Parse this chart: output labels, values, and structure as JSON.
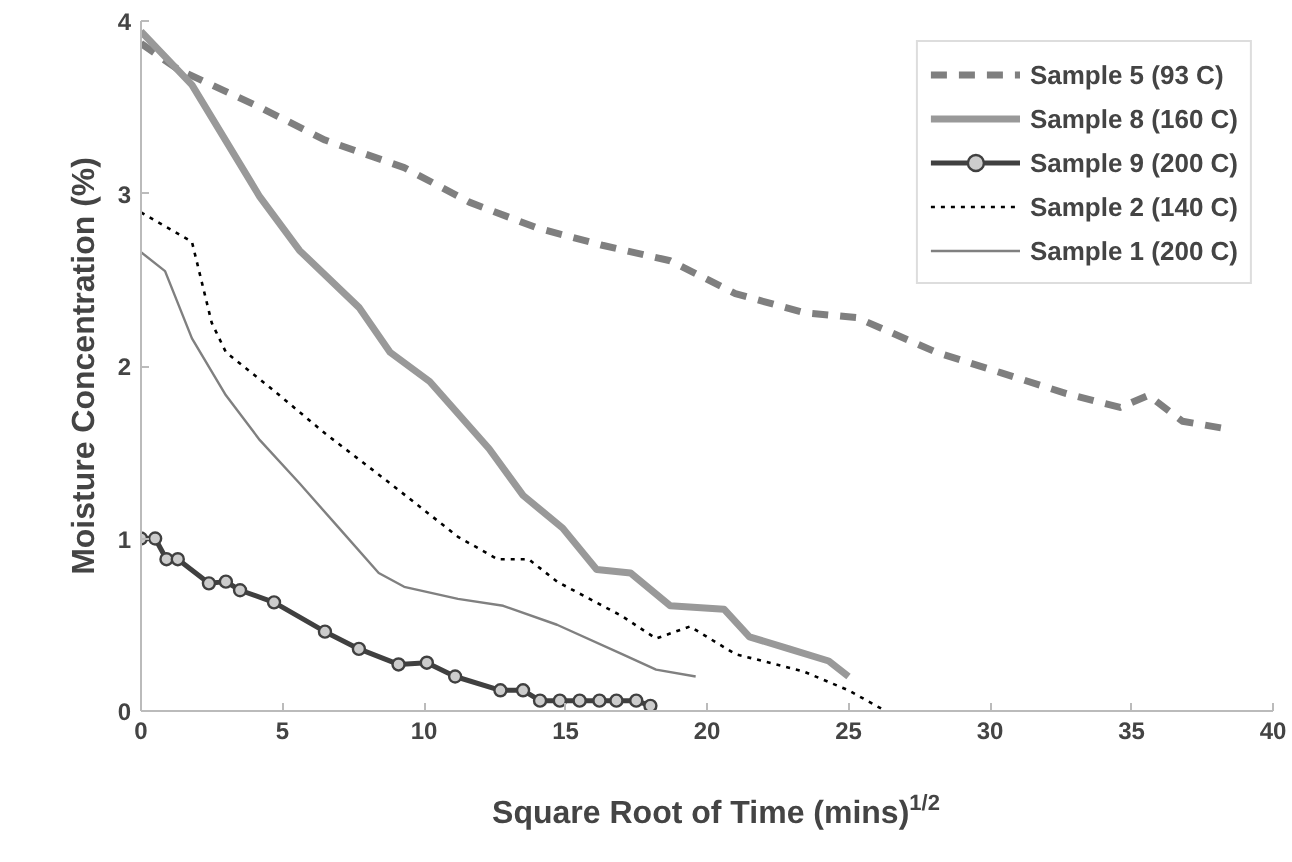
{
  "chart_data": {
    "type": "line",
    "xlabel": "Square Root of Time (mins)$^{1/2}$",
    "ylabel": "Moisture Concentration (%)",
    "xlim": [
      0,
      40
    ],
    "ylim": [
      0,
      4
    ],
    "xticks": [
      0,
      5,
      10,
      15,
      20,
      25,
      30,
      35,
      40
    ],
    "yticks": [
      0,
      1,
      2,
      3,
      4
    ],
    "grid": false,
    "legend": "top right",
    "series": [
      {
        "name": "Sample 5 (93 C)",
        "color": "#7f7f7f",
        "line_style": "dashed",
        "marker": "none",
        "x": [
          0,
          1.3,
          4.2,
          6.5,
          9.3,
          11.6,
          14,
          16.3,
          18.7,
          21,
          23.4,
          25.3,
          28.1,
          30.4,
          32.7,
          34.6,
          35.6,
          36.8,
          38.2
        ],
        "values": [
          3.87,
          3.72,
          3.5,
          3.31,
          3.15,
          2.95,
          2.8,
          2.7,
          2.61,
          2.42,
          2.31,
          2.28,
          2.08,
          1.96,
          1.84,
          1.76,
          1.83,
          1.68,
          1.64
        ]
      },
      {
        "name": "Sample 8 (160 C)",
        "color": "#999999",
        "line_style": "solid",
        "marker": "none",
        "x": [
          0,
          1.8,
          4.2,
          5.6,
          7.7,
          8.8,
          10.2,
          12.3,
          13.5,
          14.9,
          16.1,
          17.3,
          18.7,
          20.6,
          21.5,
          22.9,
          24.3,
          25
        ],
        "values": [
          3.94,
          3.63,
          2.98,
          2.67,
          2.34,
          2.08,
          1.91,
          1.52,
          1.25,
          1.06,
          0.82,
          0.8,
          0.61,
          0.59,
          0.43,
          0.36,
          0.29,
          0.2
        ]
      },
      {
        "name": "Sample 9 (200 C)",
        "color": "#404040",
        "line_style": "solid",
        "marker": "circle",
        "x": [
          0,
          0.5,
          0.9,
          1.3,
          2.4,
          3,
          3.5,
          4.7,
          6.5,
          7.7,
          9.1,
          10.1,
          11.1,
          12.7,
          13.5,
          14.1,
          14.8,
          15.5,
          16.2,
          16.8,
          17.5,
          18
        ],
        "values": [
          1.0,
          1.0,
          0.88,
          0.88,
          0.74,
          0.75,
          0.7,
          0.63,
          0.46,
          0.36,
          0.27,
          0.28,
          0.2,
          0.12,
          0.12,
          0.06,
          0.06,
          0.06,
          0.06,
          0.06,
          0.06,
          0.03
        ]
      },
      {
        "name": "Sample 2 (140 C)",
        "color": "#000000",
        "line_style": "dotted",
        "marker": "none",
        "x": [
          0,
          1.8,
          2.5,
          3,
          4.6,
          6.5,
          8.8,
          11.2,
          12.6,
          13.7,
          14.7,
          17,
          18.2,
          19.4,
          21,
          23.4,
          25,
          26.2
        ],
        "values": [
          2.89,
          2.72,
          2.25,
          2.08,
          1.87,
          1.61,
          1.32,
          1.01,
          0.88,
          0.88,
          0.75,
          0.55,
          0.42,
          0.49,
          0.33,
          0.23,
          0.12,
          0.01
        ]
      },
      {
        "name": "Sample 1 (200 C)",
        "color": "#808080",
        "line_style": "solid",
        "marker": "none",
        "x": [
          0,
          0.85,
          1.8,
          3,
          4.2,
          5.6,
          7,
          8.4,
          9.3,
          11.2,
          12.8,
          14.7,
          17,
          18.2,
          19.6
        ],
        "values": [
          2.66,
          2.55,
          2.16,
          1.83,
          1.57,
          1.32,
          1.06,
          0.8,
          0.72,
          0.65,
          0.61,
          0.5,
          0.33,
          0.24,
          0.2
        ]
      }
    ]
  }
}
